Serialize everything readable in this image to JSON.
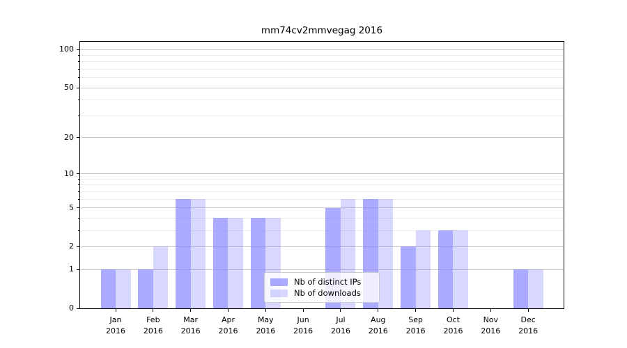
{
  "title": "mm74cv2mmvegag 2016",
  "chart_data": {
    "type": "bar",
    "title": "mm74cv2mmvegag 2016",
    "yscale": "log1p",
    "ylim": [
      0,
      115
    ],
    "grid": true,
    "legend_position": "lower center",
    "year": "2016",
    "months": [
      "Jan",
      "Feb",
      "Mar",
      "Apr",
      "May",
      "Jun",
      "Jul",
      "Aug",
      "Sep",
      "Oct",
      "Nov",
      "Dec"
    ],
    "categories": [
      "Jan 2016",
      "Feb 2016",
      "Mar 2016",
      "Apr 2016",
      "May 2016",
      "Jun 2016",
      "Jul 2016",
      "Aug 2016",
      "Sep 2016",
      "Oct 2016",
      "Nov 2016",
      "Dec 2016"
    ],
    "series": [
      {
        "name": "Nb of distinct IPs",
        "color": "rgba(127,127,255,0.66)",
        "values": [
          1,
          1,
          6,
          4,
          4,
          0,
          5,
          6,
          2,
          3,
          0,
          1
        ]
      },
      {
        "name": "Nb of downloads",
        "color": "rgba(127,127,255,0.30)",
        "values": [
          1,
          2,
          6,
          4,
          4,
          0,
          6,
          6,
          3,
          3,
          0,
          1
        ]
      }
    ],
    "yticks": [
      0,
      1,
      2,
      5,
      10,
      20,
      50,
      100
    ],
    "yticks_minor": [
      3,
      4,
      6,
      7,
      8,
      9,
      30,
      40,
      60,
      70,
      80,
      90
    ]
  },
  "colors": {
    "grid_major": "#c9c9c9",
    "grid_minor": "#ececec",
    "spine": "#000000",
    "text": "#000000",
    "legend_border": "#cccccc",
    "legend_background": "rgba(255,255,255,0.8)"
  }
}
